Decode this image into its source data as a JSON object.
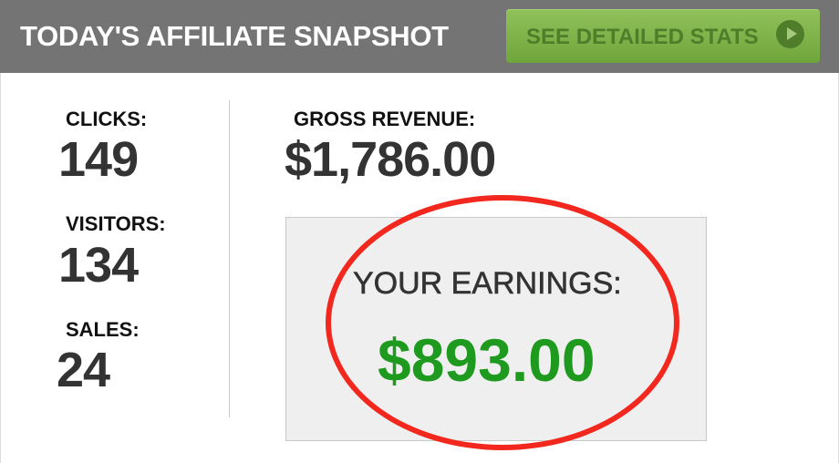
{
  "header": {
    "title": "TODAY'S AFFILIATE SNAPSHOT",
    "button_label": "SEE DETAILED STATS",
    "button_icon": "play-circle-icon"
  },
  "stats": {
    "clicks": {
      "label": "CLICKS:",
      "value": "149"
    },
    "visitors": {
      "label": "VISITORS:",
      "value": "134"
    },
    "sales": {
      "label": "SALES:",
      "value": "24"
    }
  },
  "revenue": {
    "label": "GROSS REVENUE:",
    "value": "$1,786.00"
  },
  "earnings": {
    "label": "YOUR EARNINGS:",
    "value": "$893.00",
    "color": "#1e9a1e",
    "highlight_color": "#f2281e"
  }
}
